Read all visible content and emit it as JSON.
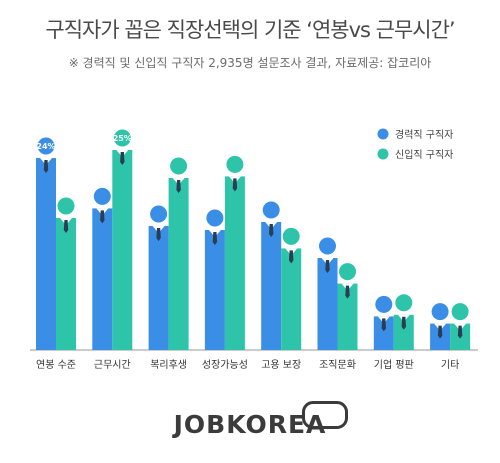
{
  "header": {
    "title": "구직자가 꼽은 직장선택의 기준 ‘연봉vs 근무시간’",
    "subtitle": "※ 경력직 및 신입직 구직자 2,935명 설문조사 결과,  자료제공: 잡코리아"
  },
  "footer": {
    "logo_text": "JOBKOREA"
  },
  "colors": {
    "experienced": "#3a8ee6",
    "newcomer": "#2ec4aa",
    "axis": "#9a9a9a"
  },
  "chart_data": {
    "type": "bar",
    "title": "구직자가 꼽은 직장선택의 기준 ‘연봉vs 근무시간’",
    "categories": [
      "연봉 수준",
      "근무시간",
      "복리후생",
      "성장가능성",
      "고용 보장",
      "조직문화",
      "기업 평판",
      "기타"
    ],
    "series": [
      {
        "name": "경력직 구직자",
        "values": [
          24,
          17.7,
          15.5,
          15,
          16,
          11.5,
          4.2,
          3.3
        ]
      },
      {
        "name": "신입직 구직자",
        "values": [
          16.5,
          25,
          21.5,
          21.7,
          12.7,
          8.3,
          4.4,
          3.3
        ]
      }
    ],
    "data_labels": [
      {
        "series": 0,
        "index": 0,
        "text": "24%"
      },
      {
        "series": 1,
        "index": 1,
        "text": "25%"
      }
    ],
    "ylim": [
      0,
      25
    ],
    "legend_position": "top-right",
    "grid": false
  }
}
